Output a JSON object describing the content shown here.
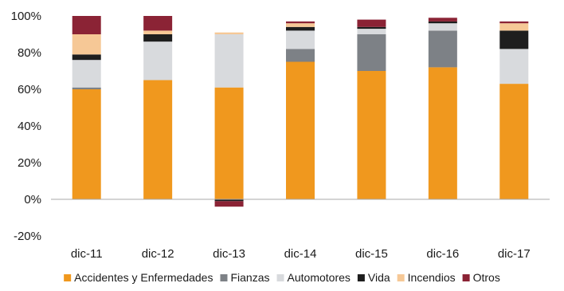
{
  "chart_data": {
    "type": "bar",
    "stacked": true,
    "categories": [
      "dic-11",
      "dic-12",
      "dic-13",
      "dic-14",
      "dic-15",
      "dic-16",
      "dic-17"
    ],
    "y_ticks": [
      "100%",
      "80%",
      "60%",
      "40%",
      "20%",
      "0%",
      "-20%"
    ],
    "ylim": [
      -20,
      100
    ],
    "grid": false,
    "legend_position": "bottom",
    "series": [
      {
        "name": "Accidentes y Enfermedades",
        "color": "#f0981e",
        "values": [
          60,
          65,
          61,
          75,
          70,
          72,
          63
        ]
      },
      {
        "name": "Fianzas",
        "color": "#7d8186",
        "values": [
          1,
          0,
          0,
          7,
          20,
          20,
          0
        ]
      },
      {
        "name": "Automotores",
        "color": "#d8dadd",
        "values": [
          15,
          21,
          29,
          10,
          3,
          4,
          19
        ]
      },
      {
        "name": "Vida",
        "color": "#1e1e1e",
        "values": [
          3,
          4,
          -1,
          2,
          1,
          1,
          10
        ]
      },
      {
        "name": "Incendios",
        "color": "#f6c896",
        "values": [
          11,
          2,
          1,
          2,
          0,
          0,
          4
        ]
      },
      {
        "name": "Otros",
        "color": "#8b2335",
        "values": [
          10,
          8,
          -3,
          1,
          4,
          2,
          1
        ]
      }
    ]
  }
}
